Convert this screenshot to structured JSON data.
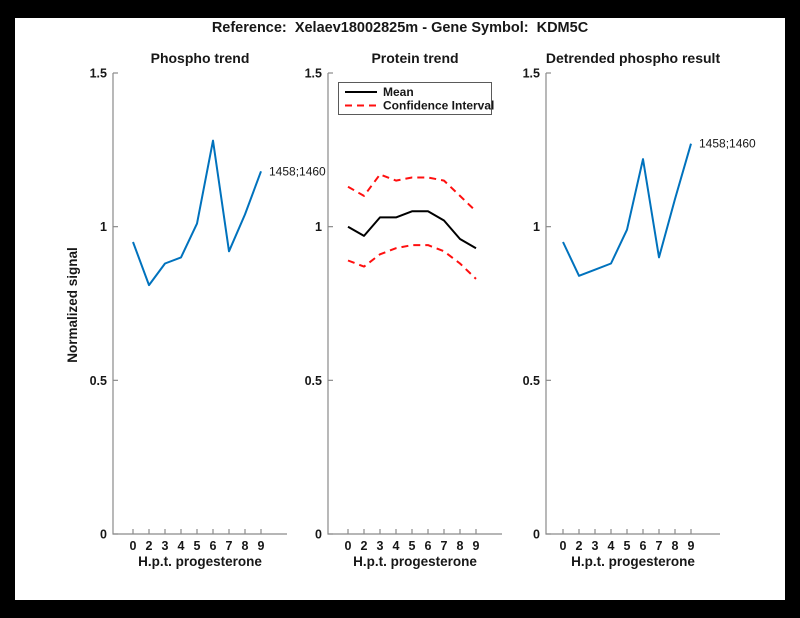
{
  "header": {
    "title": "Reference:  Xelaev18002825m - Gene Symbol:  KDM5C"
  },
  "main": {
    "ylabel": "Normalized signal"
  },
  "colors": {
    "matlab_blue": "#0072BD",
    "ci_red": "#ff0f0f",
    "mean_black": "#000000",
    "axis_gray": "#8a8a8a"
  },
  "chart_data": [
    {
      "type": "line",
      "title": "Phospho trend",
      "xlabel": "H.p.t. progesterone",
      "ylabel": "Normalized signal",
      "x_tick_labels": [
        "0",
        "2",
        "3",
        "4",
        "5",
        "6",
        "7",
        "8",
        "9"
      ],
      "y_ticks": [
        0,
        0.5,
        1,
        1.5
      ],
      "y_tick_labels": [
        "0",
        "0.5",
        "1",
        "1.5"
      ],
      "ylim": [
        0,
        1.5
      ],
      "grid": false,
      "end_label": "1458;1460",
      "series": [
        {
          "name": "phospho-signal",
          "color": "#0072BD",
          "dash": false,
          "values": [
            0.95,
            0.81,
            0.88,
            0.9,
            1.01,
            1.28,
            0.92,
            1.04,
            1.18
          ]
        }
      ]
    },
    {
      "type": "line",
      "title": "Protein trend",
      "xlabel": "H.p.t. progesterone",
      "x_tick_labels": [
        "0",
        "2",
        "3",
        "4",
        "5",
        "6",
        "7",
        "8",
        "9"
      ],
      "y_ticks": [
        0,
        0.5,
        1,
        1.5
      ],
      "y_tick_labels": [
        "0",
        "0.5",
        "1",
        "1.5"
      ],
      "ylim": [
        0,
        1.5
      ],
      "grid": false,
      "legend_position": "top-left",
      "legend": [
        {
          "label": "Mean",
          "color": "#000000",
          "dash": false
        },
        {
          "label": "Confidence Interval",
          "color": "#ff0f0f",
          "dash": true
        }
      ],
      "series": [
        {
          "name": "mean",
          "color": "#000000",
          "dash": false,
          "values": [
            1.0,
            0.97,
            1.03,
            1.03,
            1.05,
            1.05,
            1.02,
            0.96,
            0.93
          ]
        },
        {
          "name": "confidence-interval-upper",
          "color": "#ff0f0f",
          "dash": true,
          "values": [
            1.13,
            1.1,
            1.17,
            1.15,
            1.16,
            1.16,
            1.15,
            1.1,
            1.05
          ]
        },
        {
          "name": "confidence-interval-lower",
          "color": "#ff0f0f",
          "dash": true,
          "values": [
            0.89,
            0.87,
            0.91,
            0.93,
            0.94,
            0.94,
            0.92,
            0.88,
            0.83
          ]
        }
      ]
    },
    {
      "type": "line",
      "title": "Detrended phospho result",
      "xlabel": "H.p.t. progesterone",
      "x_tick_labels": [
        "0",
        "2",
        "3",
        "4",
        "5",
        "6",
        "7",
        "8",
        "9"
      ],
      "y_ticks": [
        0,
        0.5,
        1,
        1.5
      ],
      "y_tick_labels": [
        "0",
        "0.5",
        "1",
        "1.5"
      ],
      "ylim": [
        0,
        1.5
      ],
      "grid": false,
      "end_label": "1458;1460",
      "series": [
        {
          "name": "detrended-phospho",
          "color": "#0072BD",
          "dash": false,
          "values": [
            0.95,
            0.84,
            0.86,
            0.88,
            0.99,
            1.22,
            0.9,
            1.09,
            1.27
          ]
        }
      ]
    }
  ]
}
